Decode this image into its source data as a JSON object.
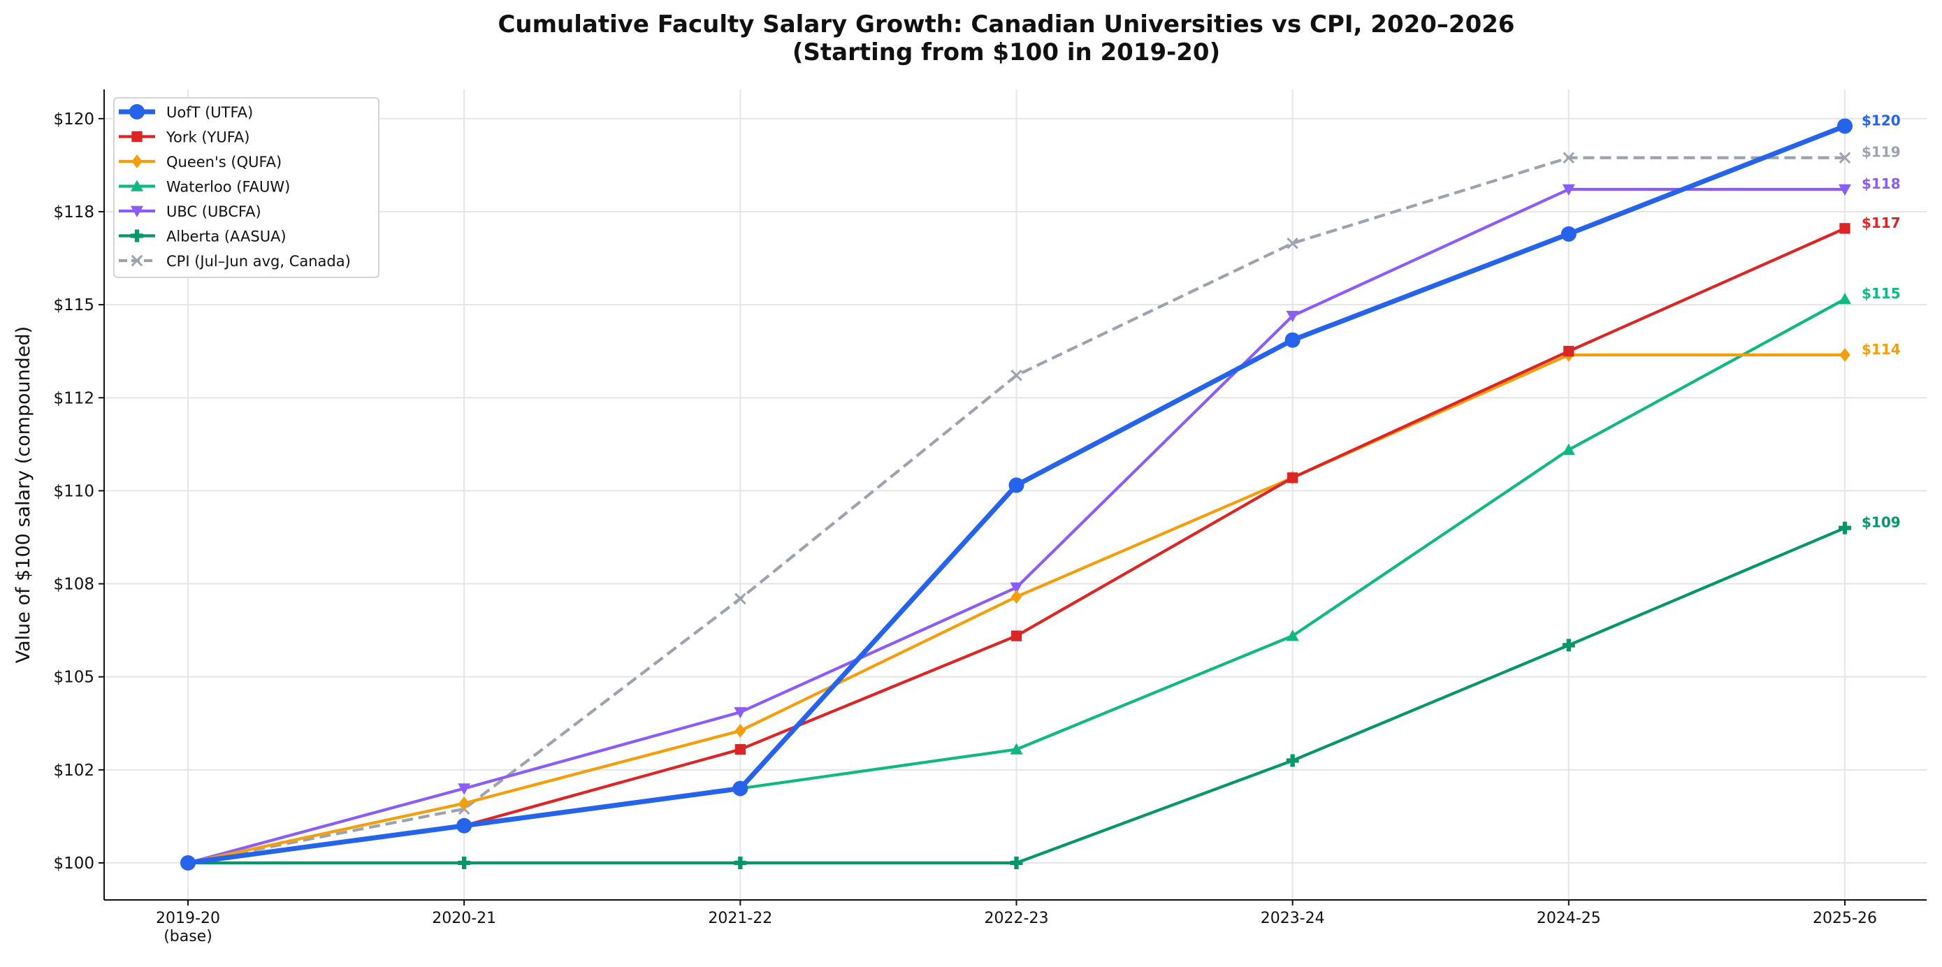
{
  "chart_data": {
    "type": "line",
    "title": "Cumulative Faculty Salary Growth: Canadian Universities vs CPI, 2020–2026",
    "subtitle": "(Starting from $100 in 2019-20)",
    "xlabel": "",
    "ylabel": "Value of $100 salary (compounded)",
    "categories": [
      "2019-20\n(base)",
      "2020-21",
      "2021-22",
      "2022-23",
      "2023-24",
      "2024-25",
      "2025-26"
    ],
    "ylim": [
      99,
      121
    ],
    "yticks": [
      100,
      102.5,
      105,
      107.5,
      110,
      112.5,
      115,
      117.5,
      120
    ],
    "ytick_labels": [
      "$100",
      "$102",
      "$105",
      "$108",
      "$110",
      "$112",
      "$115",
      "$118",
      "$120"
    ],
    "grid": true,
    "legend_position": "top-left",
    "series": [
      {
        "name": "UofT (UTFA)",
        "color": "#2563eb",
        "marker": "circle",
        "dash": false,
        "bold": true,
        "values": [
          100,
          101.0,
          102.0,
          110.15,
          114.05,
          116.9,
          119.8
        ],
        "end_label": "$120"
      },
      {
        "name": "York (YUFA)",
        "color": "#dc2626",
        "marker": "square",
        "dash": false,
        "values": [
          100,
          101.0,
          103.05,
          106.1,
          110.35,
          113.75,
          117.05
        ],
        "end_label": "$117"
      },
      {
        "name": "Queen's (QUFA)",
        "color": "#f59e0b",
        "marker": "diamond",
        "dash": false,
        "values": [
          100,
          101.6,
          103.55,
          107.15,
          110.35,
          113.65,
          113.65
        ],
        "end_label": "$114"
      },
      {
        "name": "Waterloo (FAUW)",
        "color": "#10b981",
        "marker": "triangle-up",
        "dash": false,
        "values": [
          100,
          101.0,
          102.0,
          103.05,
          106.1,
          111.1,
          115.15
        ],
        "end_label": "$115"
      },
      {
        "name": "UBC (UBCFA)",
        "color": "#8b5cf6",
        "marker": "triangle-down",
        "dash": false,
        "values": [
          100,
          102.0,
          104.05,
          107.4,
          114.7,
          118.1,
          118.1
        ],
        "end_label": "$118"
      },
      {
        "name": "Alberta (AASUA)",
        "color": "#059669",
        "marker": "plus",
        "dash": false,
        "values": [
          100,
          100,
          100,
          100,
          102.75,
          105.85,
          109.0
        ],
        "end_label": "$109"
      },
      {
        "name": "CPI (Jul–Jun avg, Canada)",
        "color": "#9ca3af",
        "marker": "x",
        "dash": true,
        "values": [
          100,
          101.45,
          107.1,
          113.1,
          116.65,
          118.95,
          118.95
        ],
        "end_label": "$119"
      }
    ]
  }
}
